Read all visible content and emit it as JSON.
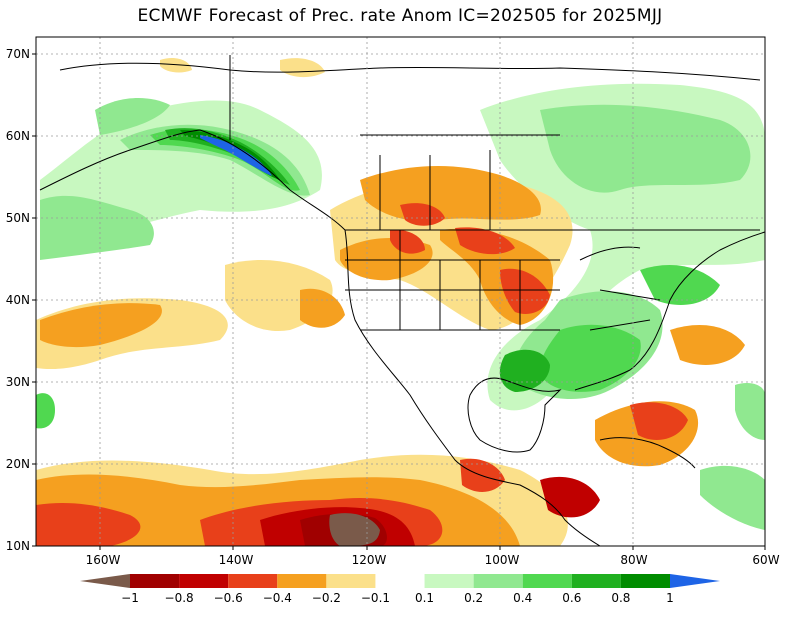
{
  "title": "ECMWF Forecast of Prec. rate Anom IC=202505 for 2025MJJ",
  "lat_labels": [
    "70N",
    "60N",
    "50N",
    "40N",
    "30N",
    "20N",
    "10N"
  ],
  "lon_labels": [
    "160W",
    "140W",
    "120W",
    "100W",
    "80W",
    "60W"
  ],
  "colorbar": {
    "labels": [
      "-1",
      "-0.8",
      "-0.6",
      "-0.4",
      "-0.2",
      "-0.1",
      "0.1",
      "0.2",
      "0.4",
      "0.6",
      "0.8",
      "1"
    ],
    "colors": [
      "#7a5a4a",
      "#a00000",
      "#c00000",
      "#e8401a",
      "#f5a020",
      "#fbe08a",
      "#ffffff",
      "#c8f8c0",
      "#90e890",
      "#50d850",
      "#20b020",
      "#008c00",
      "#1e64e6"
    ]
  },
  "colors": {
    "land_outline": "#000000",
    "grid": "#9a9a9a"
  }
}
